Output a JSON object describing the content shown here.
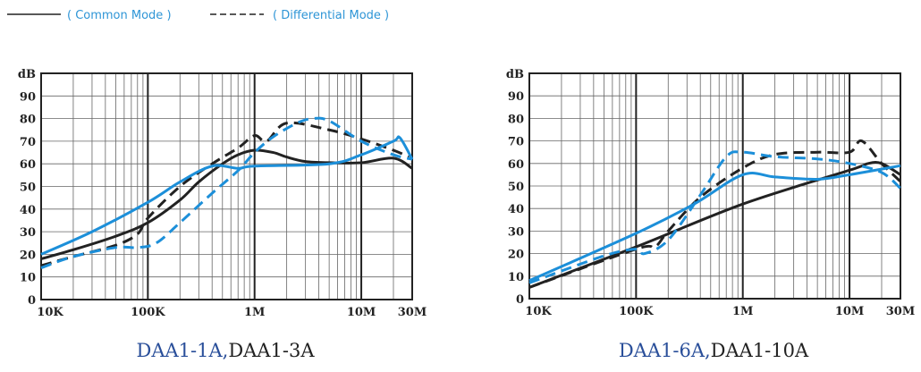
{
  "legend": {
    "common_mode": "( Common Mode )",
    "differential_mode": "( Differential Mode )"
  },
  "colors": {
    "black": "#222222",
    "blue": "#1c8fd9",
    "title_blue": "#2a4f9a",
    "grid": "#555555"
  },
  "chart_data": [
    {
      "type": "line",
      "title_part1": "DAA1-1A,",
      "title_part2": "DAA1-3A",
      "ylabel": "dB",
      "xscale": "log",
      "xlim": [
        10000,
        30000000
      ],
      "ylim": [
        0,
        100
      ],
      "grid": true,
      "x_ticks": [
        {
          "v": 10000,
          "label": "10K"
        },
        {
          "v": 100000,
          "label": "100K"
        },
        {
          "v": 1000000,
          "label": "1M"
        },
        {
          "v": 10000000,
          "label": "10M"
        },
        {
          "v": 30000000,
          "label": "30M"
        }
      ],
      "y_ticks": [
        0,
        10,
        20,
        30,
        40,
        50,
        60,
        70,
        80,
        90
      ],
      "series": [
        {
          "color": "black",
          "style": "solid",
          "points": [
            [
              10000,
              18
            ],
            [
              20000,
              22
            ],
            [
              50000,
              28
            ],
            [
              100000,
              34
            ],
            [
              200000,
              44
            ],
            [
              300000,
              52
            ],
            [
              500000,
              60
            ],
            [
              700000,
              64
            ],
            [
              1000000,
              66
            ],
            [
              1500000,
              65
            ],
            [
              2000000,
              63
            ],
            [
              3000000,
              61
            ],
            [
              5000000,
              60.5
            ],
            [
              10000000,
              60.5
            ],
            [
              20000000,
              62.5
            ],
            [
              30000000,
              58
            ]
          ]
        },
        {
          "color": "black",
          "style": "dashed",
          "points": [
            [
              10000,
              15
            ],
            [
              20000,
              19
            ],
            [
              50000,
              24
            ],
            [
              80000,
              29
            ],
            [
              100000,
              36
            ],
            [
              200000,
              50
            ],
            [
              400000,
              60
            ],
            [
              700000,
              67
            ],
            [
              1000000,
              72.5
            ],
            [
              1300000,
              70
            ],
            [
              2000000,
              78
            ],
            [
              5000000,
              75
            ],
            [
              10000000,
              71
            ],
            [
              20000000,
              66
            ],
            [
              28000000,
              63
            ]
          ]
        },
        {
          "color": "blue",
          "style": "solid",
          "points": [
            [
              10000,
              20
            ],
            [
              30000,
              30
            ],
            [
              100000,
              43
            ],
            [
              200000,
              52
            ],
            [
              400000,
              59
            ],
            [
              700000,
              58
            ],
            [
              1000000,
              59
            ],
            [
              5000000,
              60
            ],
            [
              10000000,
              64
            ],
            [
              20000000,
              70
            ],
            [
              23000000,
              71.5
            ],
            [
              30000000,
              62
            ]
          ]
        },
        {
          "color": "blue",
          "style": "dashed",
          "points": [
            [
              10000,
              14
            ],
            [
              20000,
              19
            ],
            [
              50000,
              23
            ],
            [
              80000,
              23
            ],
            [
              120000,
              25
            ],
            [
              200000,
              34
            ],
            [
              400000,
              47
            ],
            [
              700000,
              57
            ],
            [
              1000000,
              65
            ],
            [
              1500000,
              72
            ],
            [
              2500000,
              78
            ],
            [
              3500000,
              80
            ],
            [
              5000000,
              79
            ],
            [
              10000000,
              70
            ],
            [
              20000000,
              64
            ],
            [
              30000000,
              62
            ]
          ]
        }
      ]
    },
    {
      "type": "line",
      "title_part1": "DAA1-6A,",
      "title_part2": "DAA1-10A",
      "ylabel": "dB",
      "xscale": "log",
      "xlim": [
        10000,
        30000000
      ],
      "ylim": [
        0,
        100
      ],
      "grid": true,
      "x_ticks": [
        {
          "v": 10000,
          "label": "10K"
        },
        {
          "v": 100000,
          "label": "100K"
        },
        {
          "v": 1000000,
          "label": "1M"
        },
        {
          "v": 10000000,
          "label": "10M"
        },
        {
          "v": 30000000,
          "label": "30M"
        }
      ],
      "y_ticks": [
        0,
        10,
        20,
        30,
        40,
        50,
        60,
        70,
        80,
        90
      ],
      "series": [
        {
          "color": "black",
          "style": "solid",
          "points": [
            [
              10000,
              5
            ],
            [
              100000,
              23
            ],
            [
              1000000,
              42
            ],
            [
              10000000,
              57
            ],
            [
              15000000,
              60
            ],
            [
              20000000,
              60
            ],
            [
              30000000,
              55
            ]
          ]
        },
        {
          "color": "black",
          "style": "dashed",
          "points": [
            [
              10000,
              5
            ],
            [
              100000,
              22
            ],
            [
              150000,
              23
            ],
            [
              200000,
              30
            ],
            [
              400000,
              45
            ],
            [
              1000000,
              58
            ],
            [
              2000000,
              64
            ],
            [
              5000000,
              65
            ],
            [
              10000000,
              65
            ],
            [
              13000000,
              70
            ],
            [
              20000000,
              60
            ],
            [
              30000000,
              52
            ]
          ]
        },
        {
          "color": "blue",
          "style": "solid",
          "points": [
            [
              10000,
              8
            ],
            [
              100000,
              29
            ],
            [
              350000,
              42
            ],
            [
              1000000,
              55
            ],
            [
              2000000,
              54
            ],
            [
              5000000,
              53
            ],
            [
              10000000,
              55
            ],
            [
              30000000,
              59
            ]
          ]
        },
        {
          "color": "blue",
          "style": "dashed",
          "points": [
            [
              10000,
              7
            ],
            [
              50000,
              19
            ],
            [
              100000,
              22
            ],
            [
              120000,
              20
            ],
            [
              200000,
              26
            ],
            [
              400000,
              46
            ],
            [
              700000,
              63
            ],
            [
              1000000,
              65
            ],
            [
              2000000,
              63
            ],
            [
              5000000,
              62
            ],
            [
              10000000,
              60
            ],
            [
              20000000,
              56
            ],
            [
              30000000,
              49
            ]
          ]
        }
      ]
    }
  ]
}
